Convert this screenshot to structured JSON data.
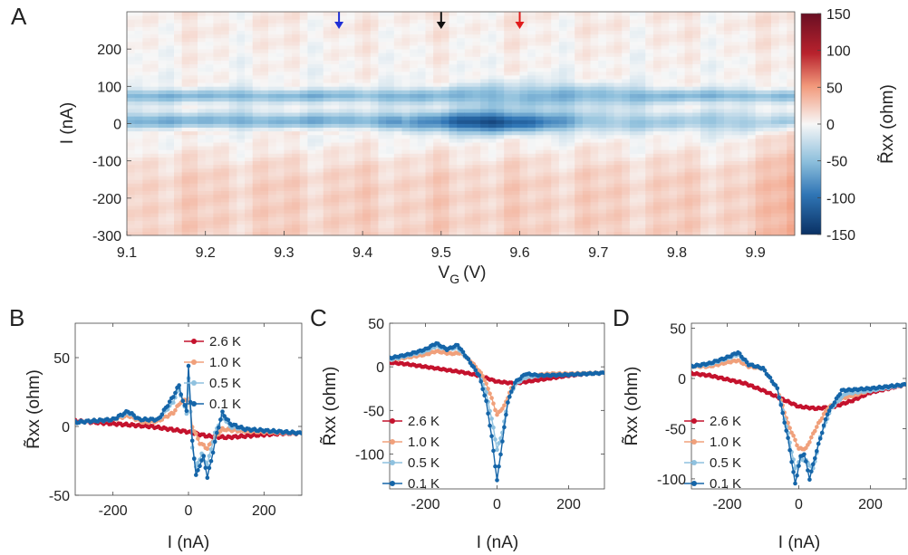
{
  "panel_letters": {
    "a": "A",
    "b": "B",
    "c": "C",
    "d": "D"
  },
  "colors": {
    "c2_6K": "#c4122d",
    "c1_0K": "#f0a07b",
    "c0_5K": "#8fc1df",
    "c0_1K": "#1565a8",
    "arrow_blue": "#1f2fd6",
    "arrow_black": "#111111",
    "arrow_red": "#e01b1b"
  },
  "chart_data": [
    {
      "panel": "A",
      "type": "heatmap",
      "xlabel_main": "V",
      "xlabel_sub": "G",
      "xlabel_unit": "(V)",
      "ylabel": "I (nA)",
      "xlim": [
        9.1,
        9.95
      ],
      "ylim": [
        -300,
        300
      ],
      "x_ticks": [
        "9.1",
        "9.2",
        "9.3",
        "9.4",
        "9.5",
        "9.6",
        "9.7",
        "9.8",
        "9.9"
      ],
      "y_ticks": [
        "200",
        "100",
        "0",
        "-100",
        "-200",
        "-300"
      ],
      "colorbar": {
        "label": "R̃xx (ohm)",
        "range": [
          -150,
          150
        ],
        "ticks": [
          "150",
          "100",
          "50",
          "0",
          "-50",
          "-100",
          "-150"
        ],
        "colormap": "blue-white-red"
      },
      "arrows": [
        {
          "x": 9.37,
          "color": "blue"
        },
        {
          "x": 9.5,
          "color": "black"
        },
        {
          "x": 9.6,
          "color": "red"
        }
      ],
      "features": [
        {
          "description": "negative band",
          "i_center": 75,
          "value": -55
        },
        {
          "description": "deep negative dip",
          "vg_center": 9.56,
          "i_center": 5,
          "value": -130
        },
        {
          "description": "positive background at negative bias",
          "i_range": [
            -300,
            -100
          ],
          "value": 20
        }
      ]
    },
    {
      "panel": "B",
      "type": "line",
      "xlabel": "I (nA)",
      "ylabel": "R̃xx (ohm)",
      "xlim": [
        -300,
        300
      ],
      "ylim": [
        -50,
        75
      ],
      "x_ticks": [
        "-200",
        "0",
        "200"
      ],
      "y_ticks": [
        "50",
        "0",
        "-50"
      ],
      "legend_position": "top-right",
      "series": [
        {
          "name": "2.6 K",
          "points": [
            [
              -300,
              4
            ],
            [
              -250,
              3
            ],
            [
              -200,
              2
            ],
            [
              -150,
              1
            ],
            [
              -100,
              0
            ],
            [
              -50,
              -2
            ],
            [
              0,
              -4
            ],
            [
              50,
              -7
            ],
            [
              100,
              -8
            ],
            [
              150,
              -7
            ],
            [
              200,
              -6
            ],
            [
              250,
              -5
            ],
            [
              300,
              -5
            ]
          ]
        },
        {
          "name": "1.0 K",
          "points": [
            [
              -300,
              3
            ],
            [
              -250,
              4
            ],
            [
              -200,
              5
            ],
            [
              -160,
              8
            ],
            [
              -120,
              3
            ],
            [
              -80,
              4
            ],
            [
              -40,
              10
            ],
            [
              -20,
              18
            ],
            [
              0,
              20
            ],
            [
              10,
              0
            ],
            [
              30,
              -12
            ],
            [
              50,
              -16
            ],
            [
              70,
              -8
            ],
            [
              90,
              -2
            ],
            [
              130,
              -3
            ],
            [
              200,
              -4
            ],
            [
              300,
              -5
            ]
          ]
        },
        {
          "name": "0.5 K",
          "points": [
            [
              -300,
              3
            ],
            [
              -250,
              4
            ],
            [
              -200,
              5
            ],
            [
              -160,
              10
            ],
            [
              -130,
              5
            ],
            [
              -80,
              5
            ],
            [
              -40,
              18
            ],
            [
              -25,
              28
            ],
            [
              -15,
              18
            ],
            [
              -5,
              10
            ],
            [
              0,
              35
            ],
            [
              10,
              -15
            ],
            [
              20,
              -30
            ],
            [
              35,
              -20
            ],
            [
              50,
              -28
            ],
            [
              70,
              -5
            ],
            [
              90,
              8
            ],
            [
              110,
              0
            ],
            [
              150,
              -2
            ],
            [
              200,
              -3
            ],
            [
              300,
              -5
            ]
          ]
        },
        {
          "name": "0.1 K",
          "points": [
            [
              -300,
              3
            ],
            [
              -250,
              4
            ],
            [
              -200,
              5
            ],
            [
              -160,
              11
            ],
            [
              -130,
              5
            ],
            [
              -80,
              5
            ],
            [
              -40,
              22
            ],
            [
              -25,
              30
            ],
            [
              -15,
              18
            ],
            [
              -5,
              12
            ],
            [
              0,
              44
            ],
            [
              10,
              -10
            ],
            [
              20,
              -36
            ],
            [
              30,
              -28
            ],
            [
              40,
              -22
            ],
            [
              50,
              -37
            ],
            [
              60,
              -25
            ],
            [
              75,
              -5
            ],
            [
              90,
              10
            ],
            [
              110,
              2
            ],
            [
              150,
              -2
            ],
            [
              200,
              -3
            ],
            [
              300,
              -5
            ]
          ]
        }
      ]
    },
    {
      "panel": "C",
      "type": "line",
      "xlabel": "I (nA)",
      "ylabel": "R̃xx (ohm)",
      "xlim": [
        -300,
        300
      ],
      "ylim": [
        -140,
        50
      ],
      "x_ticks": [
        "-200",
        "0",
        "200"
      ],
      "y_ticks": [
        "50",
        "0",
        "-50",
        "-100"
      ],
      "legend_position": "bottom-left",
      "series": [
        {
          "name": "2.6 K",
          "points": [
            [
              -300,
              5
            ],
            [
              -250,
              3
            ],
            [
              -200,
              0
            ],
            [
              -150,
              -3
            ],
            [
              -100,
              -6
            ],
            [
              -50,
              -10
            ],
            [
              0,
              -17
            ],
            [
              50,
              -19
            ],
            [
              100,
              -16
            ],
            [
              150,
              -13
            ],
            [
              200,
              -10
            ],
            [
              250,
              -8
            ],
            [
              300,
              -7
            ]
          ]
        },
        {
          "name": "1.0 K",
          "points": [
            [
              -300,
              8
            ],
            [
              -250,
              11
            ],
            [
              -200,
              14
            ],
            [
              -170,
              18
            ],
            [
              -130,
              15
            ],
            [
              -100,
              16
            ],
            [
              -70,
              5
            ],
            [
              -40,
              -10
            ],
            [
              -20,
              -30
            ],
            [
              0,
              -55
            ],
            [
              20,
              -45
            ],
            [
              40,
              -25
            ],
            [
              60,
              -15
            ],
            [
              100,
              -10
            ],
            [
              150,
              -8
            ],
            [
              200,
              -8
            ],
            [
              300,
              -7
            ]
          ]
        },
        {
          "name": "0.5 K",
          "points": [
            [
              -300,
              8
            ],
            [
              -250,
              13
            ],
            [
              -200,
              18
            ],
            [
              -170,
              24
            ],
            [
              -140,
              20
            ],
            [
              -110,
              22
            ],
            [
              -80,
              8
            ],
            [
              -50,
              -10
            ],
            [
              -30,
              -30
            ],
            [
              -10,
              -70
            ],
            [
              0,
              -95
            ],
            [
              15,
              -75
            ],
            [
              30,
              -40
            ],
            [
              50,
              -20
            ],
            [
              80,
              -12
            ],
            [
              120,
              -10
            ],
            [
              200,
              -9
            ],
            [
              300,
              -7
            ]
          ]
        },
        {
          "name": "0.1 K",
          "points": [
            [
              -300,
              10
            ],
            [
              -250,
              14
            ],
            [
              -200,
              20
            ],
            [
              -170,
              27
            ],
            [
              -140,
              20
            ],
            [
              -110,
              25
            ],
            [
              -80,
              8
            ],
            [
              -50,
              -10
            ],
            [
              -30,
              -40
            ],
            [
              -15,
              -80
            ],
            [
              0,
              -130
            ],
            [
              15,
              -85
            ],
            [
              30,
              -40
            ],
            [
              50,
              -18
            ],
            [
              80,
              -8
            ],
            [
              120,
              -10
            ],
            [
              200,
              -9
            ],
            [
              300,
              -7
            ]
          ]
        }
      ]
    },
    {
      "panel": "D",
      "type": "line",
      "xlabel": "I (nA)",
      "ylabel": "R̃xx (ohm)",
      "xlim": [
        -300,
        300
      ],
      "ylim": [
        -110,
        55
      ],
      "x_ticks": [
        "-200",
        "0",
        "200"
      ],
      "y_ticks": [
        "50",
        "0",
        "-50",
        "-100"
      ],
      "legend_position": "bottom-left",
      "series": [
        {
          "name": "2.6 K",
          "points": [
            [
              -300,
              5
            ],
            [
              -250,
              3
            ],
            [
              -200,
              -1
            ],
            [
              -150,
              -5
            ],
            [
              -100,
              -12
            ],
            [
              -50,
              -20
            ],
            [
              0,
              -28
            ],
            [
              50,
              -30
            ],
            [
              100,
              -28
            ],
            [
              150,
              -22
            ],
            [
              200,
              -14
            ],
            [
              250,
              -10
            ],
            [
              300,
              -6
            ]
          ]
        },
        {
          "name": "1.0 K",
          "points": [
            [
              -300,
              12
            ],
            [
              -250,
              12
            ],
            [
              -200,
              16
            ],
            [
              -170,
              18
            ],
            [
              -140,
              12
            ],
            [
              -100,
              10
            ],
            [
              -60,
              -10
            ],
            [
              -30,
              -45
            ],
            [
              0,
              -70
            ],
            [
              20,
              -70
            ],
            [
              50,
              -48
            ],
            [
              80,
              -30
            ],
            [
              120,
              -20
            ],
            [
              200,
              -12
            ],
            [
              300,
              -6
            ]
          ]
        },
        {
          "name": "0.5 K",
          "points": [
            [
              -300,
              12
            ],
            [
              -250,
              14
            ],
            [
              -200,
              20
            ],
            [
              -170,
              24
            ],
            [
              -140,
              14
            ],
            [
              -100,
              10
            ],
            [
              -60,
              -10
            ],
            [
              -30,
              -55
            ],
            [
              -10,
              -90
            ],
            [
              5,
              -80
            ],
            [
              20,
              -82
            ],
            [
              40,
              -90
            ],
            [
              60,
              -58
            ],
            [
              90,
              -30
            ],
            [
              130,
              -15
            ],
            [
              200,
              -12
            ],
            [
              300,
              -6
            ]
          ]
        },
        {
          "name": "0.1 K",
          "points": [
            [
              -300,
              12
            ],
            [
              -250,
              15
            ],
            [
              -200,
              21
            ],
            [
              -170,
              26
            ],
            [
              -140,
              14
            ],
            [
              -100,
              10
            ],
            [
              -60,
              -10
            ],
            [
              -30,
              -60
            ],
            [
              -10,
              -105
            ],
            [
              5,
              -78
            ],
            [
              15,
              -75
            ],
            [
              30,
              -100
            ],
            [
              50,
              -72
            ],
            [
              80,
              -35
            ],
            [
              120,
              -12
            ],
            [
              200,
              -10
            ],
            [
              300,
              -6
            ]
          ]
        }
      ]
    }
  ]
}
